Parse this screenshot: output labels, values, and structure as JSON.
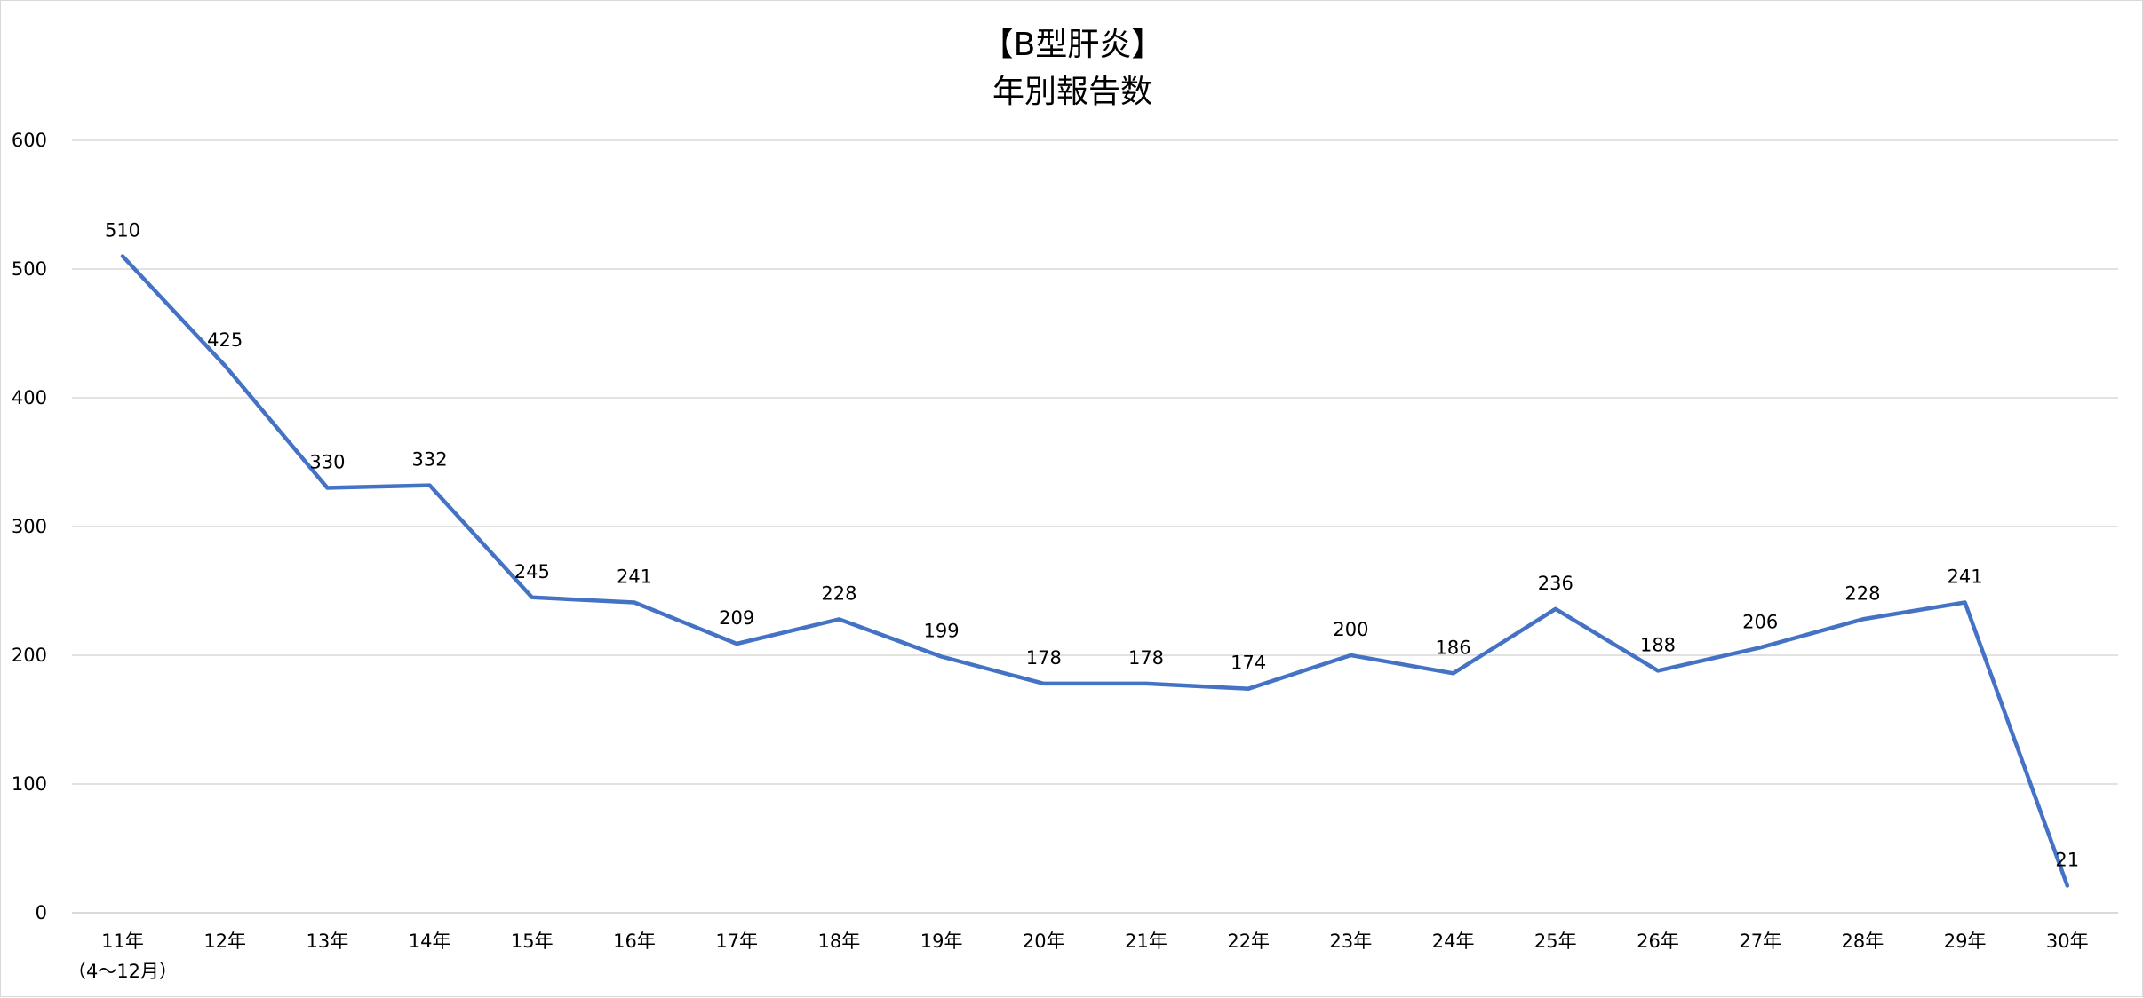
{
  "chart_data": {
    "type": "line",
    "title": "【B型肝炎】",
    "subtitle": "年別報告数",
    "categories": [
      "11年",
      "12年",
      "13年",
      "14年",
      "15年",
      "16年",
      "17年",
      "18年",
      "19年",
      "20年",
      "21年",
      "22年",
      "23年",
      "24年",
      "25年",
      "26年",
      "27年",
      "28年",
      "29年",
      "30年"
    ],
    "category_notes": [
      "（4～12月）",
      "",
      "",
      "",
      "",
      "",
      "",
      "",
      "",
      "",
      "",
      "",
      "",
      "",
      "",
      "",
      "",
      "",
      "",
      ""
    ],
    "series": [
      {
        "color": "#4472c4",
        "values": [
          510,
          425,
          330,
          332,
          245,
          241,
          209,
          228,
          199,
          178,
          178,
          174,
          200,
          186,
          236,
          188,
          206,
          228,
          241,
          21
        ]
      }
    ],
    "yticks": [
      0,
      100,
      200,
      300,
      400,
      500,
      600
    ],
    "ylim": [
      0,
      600
    ],
    "grid": true,
    "legend": "none",
    "data_labels": true
  }
}
